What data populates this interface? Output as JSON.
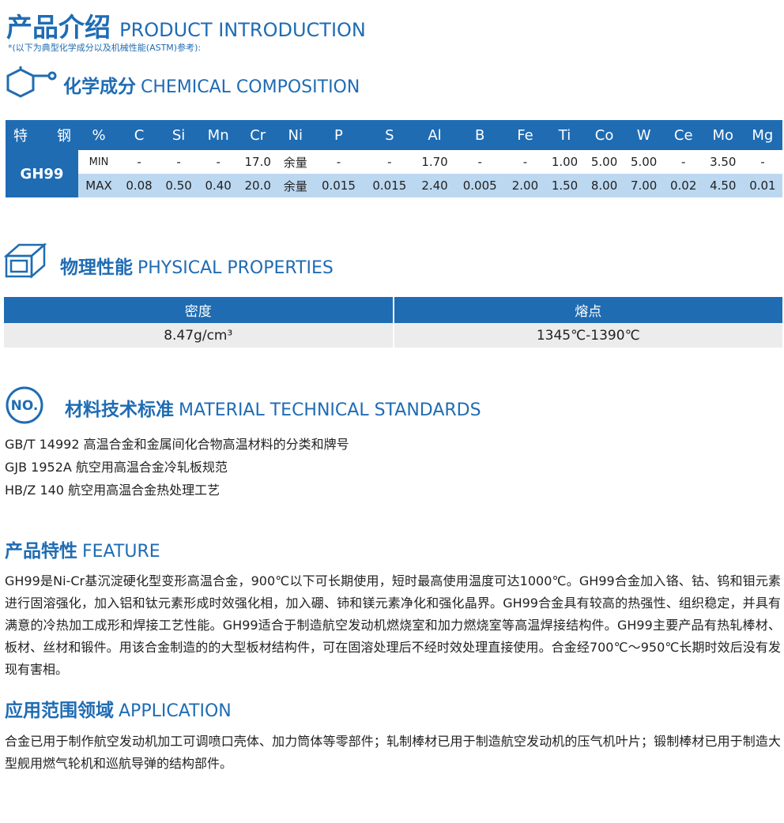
{
  "header": {
    "title_cn": "产品介绍",
    "title_en": "PRODUCT INTRODUCTION",
    "note": "*(以下为典型化学成分以及机械性能(ASTM)参考):"
  },
  "chemical": {
    "title_cn": "化学成分",
    "title_en": "CHEMICAL COMPOSITION",
    "columns": [
      "特",
      "钢",
      "%",
      "C",
      "Si",
      "Mn",
      "Cr",
      "Ni",
      "P",
      "S",
      "Al",
      "B",
      "Fe",
      "Ti",
      "Co",
      "W",
      "Ce",
      "Mo",
      "Mg"
    ],
    "grade": "GH99",
    "rows": [
      [
        "MIN",
        "-",
        "-",
        "-",
        "17.0",
        "余量",
        "-",
        "-",
        "1.70",
        "-",
        "-",
        "1.00",
        "5.00",
        "5.00",
        "-",
        "3.50",
        "-"
      ],
      [
        "MAX",
        "0.08",
        "0.50",
        "0.40",
        "20.0",
        "余量",
        "0.015",
        "0.015",
        "2.40",
        "0.005",
        "2.00",
        "1.50",
        "8.00",
        "7.00",
        "0.02",
        "4.50",
        "0.01"
      ]
    ]
  },
  "physical": {
    "title_cn": "物理性能",
    "title_en": "PHYSICAL PROPERTIES",
    "columns": [
      "密度",
      "熔点"
    ],
    "values": [
      "8.47g/cm³",
      "1345℃-1390℃"
    ]
  },
  "standards": {
    "title_cn": "材料技术标准",
    "title_en": "MATERIAL TECHNICAL STANDARDS",
    "items": [
      "GB/T 14992 高温合金和金属间化合物高温材料的分类和牌号",
      "GJB 1952A 航空用高温合金冷轧板规范",
      "HB/Z 140 航空用高温合金热处理工艺"
    ]
  },
  "feature": {
    "title_cn": "产品特性",
    "title_en": "FEATURE",
    "text": "GH99是Ni-Cr基沉淀硬化型变形高温合金，900℃以下可长期使用，短时最高使用温度可达1000℃。GH99合金加入铬、钴、钨和钼元素进行固溶强化，加入铝和钛元素形成时效强化相，加入硼、铈和镁元素净化和强化晶界。GH99合金具有较高的热强性、组织稳定，并具有满意的冷热加工成形和焊接工艺性能。GH99适合于制造航空发动机燃烧室和加力燃烧室等高温焊接结构件。GH99主要产品有热轧棒材、板材、丝材和锻件。用该合金制造的的大型板材结构件，可在固溶处理后不经时效处理直接使用。合金经700℃～950℃长期时效后没有发现有害相。"
  },
  "application": {
    "title_cn": "应用范围领域",
    "title_en": "APPLICATION",
    "text": "合金已用于制作航空发动机加工可调喷口壳体、加力筒体等零部件；轧制棒材已用于制造航空发动机的压气机叶片；锻制棒材已用于制造大型舰用燃气轮机和巡航导弹的结构部件。"
  }
}
